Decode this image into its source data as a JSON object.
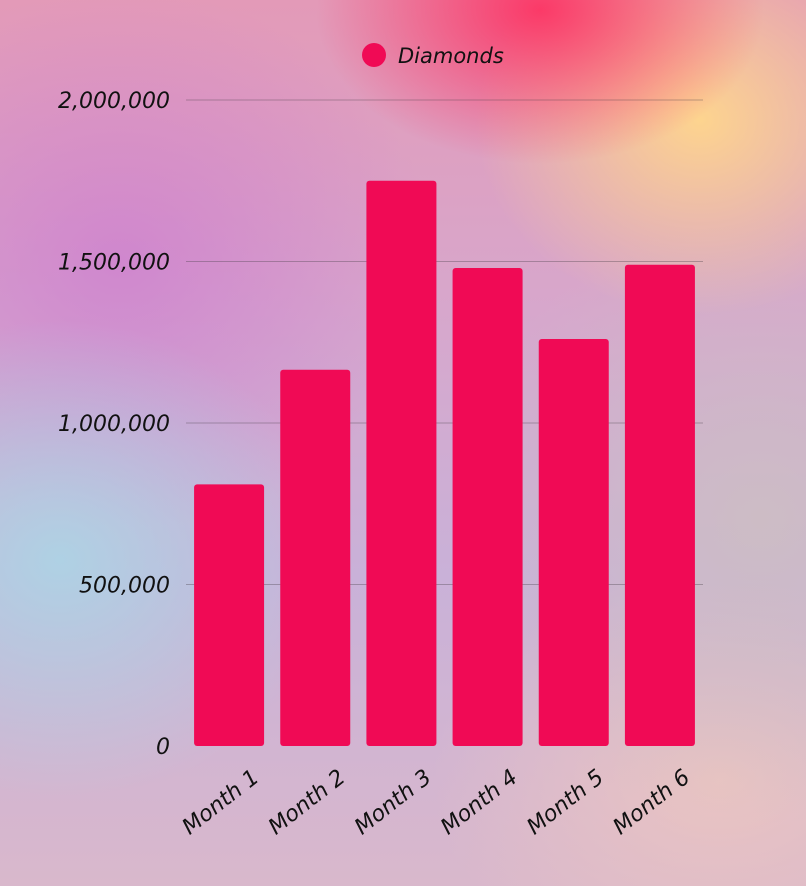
{
  "chart_data": {
    "type": "bar",
    "categories": [
      "Month 1",
      "Month 2",
      "Month 3",
      "Month 4",
      "Month 5",
      "Month 6"
    ],
    "series": [
      {
        "name": "Diamonds",
        "values": [
          810000,
          1165000,
          1750000,
          1480000,
          1260000,
          1490000
        ]
      }
    ],
    "ylim": [
      0,
      2000000
    ],
    "yticks": [
      0,
      500000,
      1000000,
      1500000,
      2000000
    ],
    "ytick_labels": [
      "0",
      "500,000",
      "1,000,000",
      "1,500,000",
      "2,000,000"
    ],
    "grid": true,
    "legend_position": "top-center",
    "bar_color": "#f00a55",
    "title": "",
    "xlabel": "",
    "ylabel": ""
  }
}
